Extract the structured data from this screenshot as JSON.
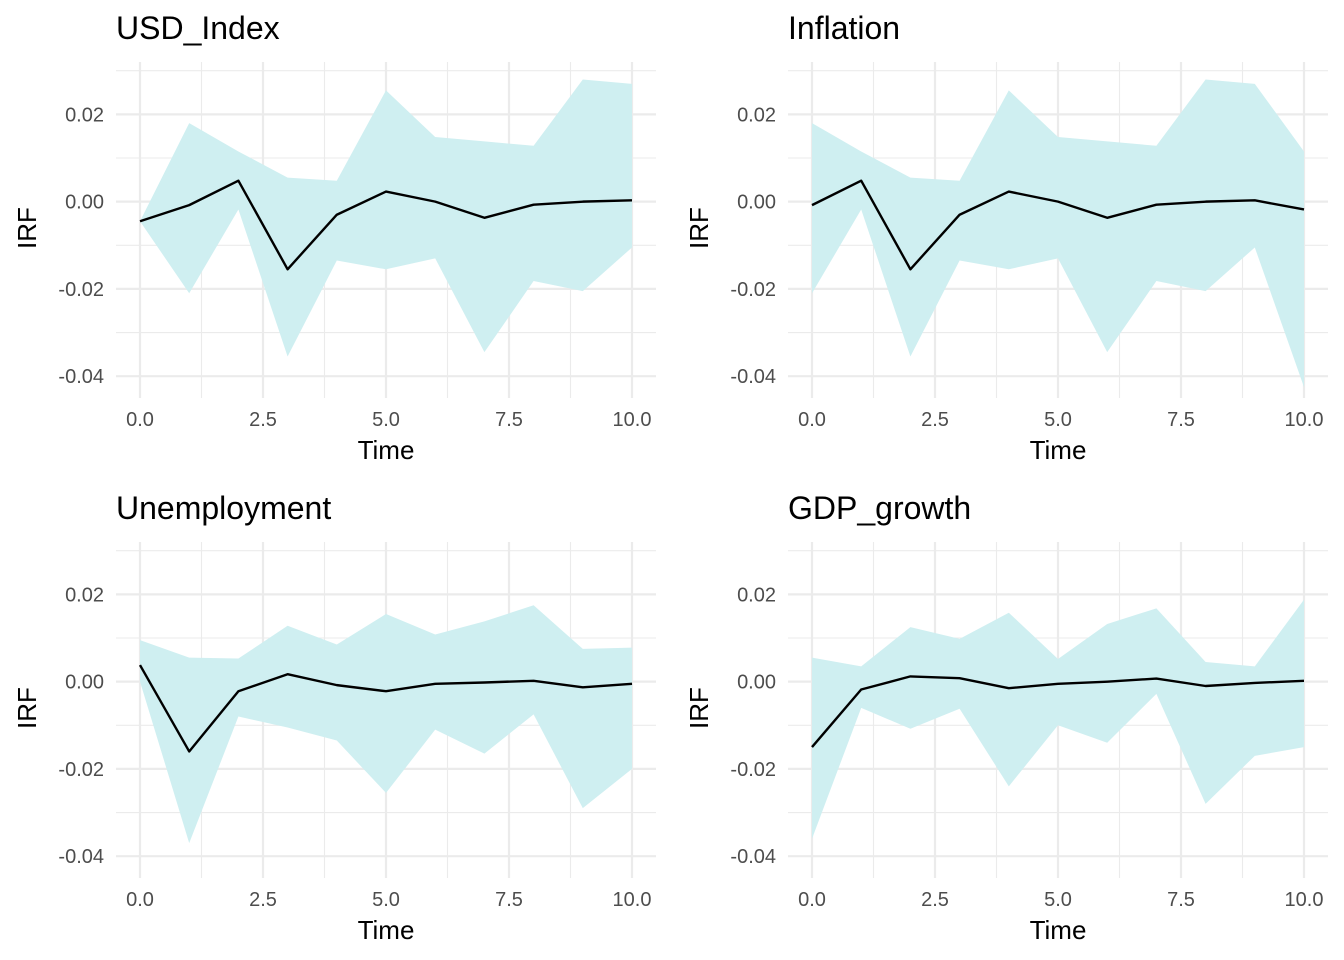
{
  "chart_data": [
    {
      "type": "line",
      "title": "USD_Index",
      "xlabel": "Time",
      "ylabel": "IRF",
      "xlim": [
        0,
        10
      ],
      "ylim": [
        -0.045,
        0.032
      ],
      "x_ticks": [
        0,
        2.5,
        5,
        7.5,
        10
      ],
      "x_tick_labels": [
        "0.0",
        "2.5",
        "5.0",
        "7.5",
        "10.0"
      ],
      "y_ticks": [
        -0.04,
        -0.02,
        0,
        0.02
      ],
      "y_tick_labels": [
        "-0.04",
        "-0.02",
        "0.00",
        "0.02"
      ],
      "x": [
        0,
        1,
        2,
        3,
        4,
        5,
        6,
        7,
        8,
        9,
        10
      ],
      "series": [
        {
          "values": [
            -0.0045,
            -0.0008,
            0.0048,
            -0.0155,
            -0.003,
            0.0023,
            0.0,
            -0.0037,
            -0.0007,
            0.0,
            0.0003
          ],
          "color": "#000000"
        }
      ],
      "band": {
        "lower": [
          -0.0045,
          -0.021,
          -0.0018,
          -0.0355,
          -0.0135,
          -0.0155,
          -0.013,
          -0.0345,
          -0.0182,
          -0.0205,
          -0.0105
        ],
        "upper": [
          -0.0045,
          0.018,
          0.0115,
          0.0055,
          0.0048,
          0.0255,
          0.0148,
          0.0138,
          0.0128,
          0.028,
          0.027
        ],
        "color": "#cfeff1"
      },
      "grid": true
    },
    {
      "type": "line",
      "title": "Inflation",
      "xlabel": "Time",
      "ylabel": "IRF",
      "xlim": [
        0,
        10
      ],
      "ylim": [
        -0.045,
        0.032
      ],
      "x_ticks": [
        0,
        2.5,
        5,
        7.5,
        10
      ],
      "x_tick_labels": [
        "0.0",
        "2.5",
        "5.0",
        "7.5",
        "10.0"
      ],
      "y_ticks": [
        -0.04,
        -0.02,
        0,
        0.02
      ],
      "y_tick_labels": [
        "-0.04",
        "-0.02",
        "0.00",
        "0.02"
      ],
      "x": [
        0,
        1,
        2,
        3,
        4,
        5,
        6,
        7,
        8,
        9,
        10
      ],
      "series": [
        {
          "values": [
            -0.0008,
            0.0048,
            -0.0155,
            -0.003,
            0.0023,
            0.0,
            -0.0037,
            -0.0007,
            0.0,
            0.0003,
            -0.0018
          ],
          "color": "#000000"
        }
      ],
      "band": {
        "lower": [
          -0.021,
          -0.0018,
          -0.0355,
          -0.0135,
          -0.0155,
          -0.013,
          -0.0345,
          -0.0182,
          -0.0205,
          -0.0105,
          -0.0425
        ],
        "upper": [
          0.018,
          0.0115,
          0.0055,
          0.0048,
          0.0255,
          0.0148,
          0.0138,
          0.0128,
          0.028,
          0.027,
          0.0115
        ],
        "color": "#cfeff1"
      },
      "grid": true
    },
    {
      "type": "line",
      "title": "Unemployment",
      "xlabel": "Time",
      "ylabel": "IRF",
      "xlim": [
        0,
        10
      ],
      "ylim": [
        -0.045,
        0.032
      ],
      "x_ticks": [
        0,
        2.5,
        5,
        7.5,
        10
      ],
      "x_tick_labels": [
        "0.0",
        "2.5",
        "5.0",
        "7.5",
        "10.0"
      ],
      "y_ticks": [
        -0.04,
        -0.02,
        0,
        0.02
      ],
      "y_tick_labels": [
        "-0.04",
        "-0.02",
        "0.00",
        "0.02"
      ],
      "x": [
        0,
        1,
        2,
        3,
        4,
        5,
        6,
        7,
        8,
        9,
        10
      ],
      "series": [
        {
          "values": [
            0.0038,
            -0.016,
            -0.0022,
            0.0017,
            -0.0008,
            -0.0022,
            -0.0005,
            -0.0002,
            0.0002,
            -0.0013,
            -0.0005
          ],
          "color": "#000000"
        }
      ],
      "band": {
        "lower": [
          0.0,
          -0.037,
          -0.008,
          -0.0105,
          -0.0135,
          -0.0255,
          -0.011,
          -0.0165,
          -0.0075,
          -0.029,
          -0.02
        ],
        "upper": [
          0.0095,
          0.0055,
          0.0053,
          0.0128,
          0.0085,
          0.0155,
          0.0108,
          0.0138,
          0.0175,
          0.0075,
          0.0078
        ],
        "color": "#cfeff1"
      },
      "grid": true
    },
    {
      "type": "line",
      "title": "GDP_growth",
      "xlabel": "Time",
      "ylabel": "IRF",
      "xlim": [
        0,
        10
      ],
      "ylim": [
        -0.045,
        0.032
      ],
      "x_ticks": [
        0,
        2.5,
        5,
        7.5,
        10
      ],
      "x_tick_labels": [
        "0.0",
        "2.5",
        "5.0",
        "7.5",
        "10.0"
      ],
      "y_ticks": [
        -0.04,
        -0.02,
        0,
        0.02
      ],
      "y_tick_labels": [
        "-0.04",
        "-0.02",
        "0.00",
        "0.02"
      ],
      "x": [
        0,
        1,
        2,
        3,
        4,
        5,
        6,
        7,
        8,
        9,
        10
      ],
      "series": [
        {
          "values": [
            -0.015,
            -0.0018,
            0.0012,
            0.0008,
            -0.0015,
            -0.0005,
            0.0,
            0.0007,
            -0.001,
            -0.0003,
            0.0002
          ],
          "color": "#000000"
        }
      ],
      "band": {
        "lower": [
          -0.036,
          -0.006,
          -0.0108,
          -0.0062,
          -0.024,
          -0.01,
          -0.014,
          -0.0028,
          -0.028,
          -0.017,
          -0.015
        ],
        "upper": [
          0.0055,
          0.0035,
          0.0125,
          0.0098,
          0.0158,
          0.0052,
          0.0132,
          0.0168,
          0.0045,
          0.0035,
          0.0188
        ],
        "color": "#cfeff1"
      },
      "grid": true
    }
  ]
}
